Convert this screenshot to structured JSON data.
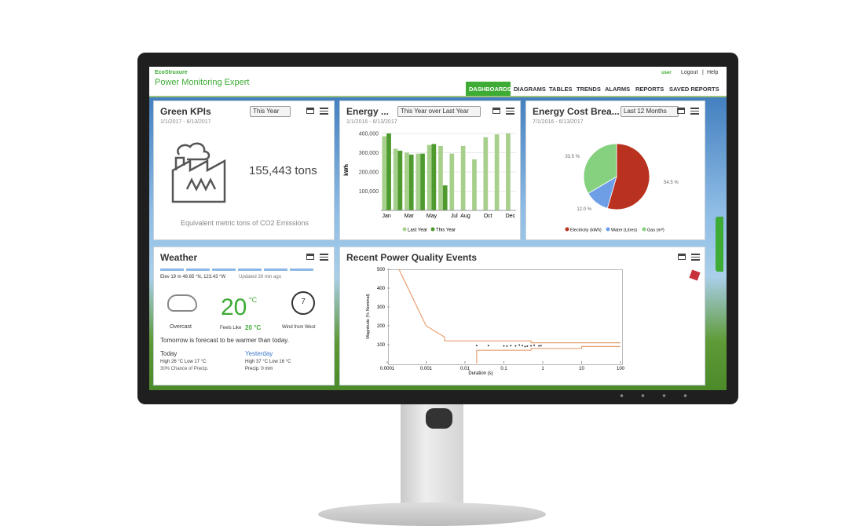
{
  "header": {
    "logo": "EcoStruxure",
    "app": "Power Monitoring Expert",
    "user": "user",
    "logout": "Logout",
    "help": "Help",
    "nav": [
      "DASHBOARDS",
      "DIAGRAMS",
      "TABLES",
      "TRENDS",
      "ALARMS",
      "REPORTS",
      "SAVED REPORTS"
    ]
  },
  "kpi": {
    "title": "Green KPIs",
    "period": "This Year",
    "dates": "1/1/2017 - 6/13/2017",
    "value": "155,443 tons",
    "caption": "Equivalent metric tons of CO2 Emissions"
  },
  "energy": {
    "title": "Energy ...",
    "period": "This Year over Last Year",
    "dates": "1/1/2016 - 6/13/2017"
  },
  "cost": {
    "title": "Energy Cost Brea...",
    "period": "Last 12 Months",
    "dates": "7/1/2016 - 6/13/2017"
  },
  "weather": {
    "title": "Weather",
    "location": "Elev 19 m 48.65 °N, 123.43 °W",
    "updated": "Updated 39 min ago",
    "condition": "Overcast",
    "temp": "20",
    "unit": "°C",
    "feels_label": "Feels Like",
    "feels": "20 °C",
    "wind": "7",
    "wind_label": "Wind from West",
    "forecast": "Tomorrow is forecast to be warmer than today.",
    "today": {
      "label": "Today",
      "temps": "High 26 °C  Low 17 °C",
      "precip": "30% Chance of Precip."
    },
    "yesterday": {
      "label": "Yesterday",
      "temps": "High 37 °C  Low 16 °C",
      "precip": "Precip. 0 mm"
    }
  },
  "pq": {
    "title": "Recent Power Quality Events"
  },
  "chart_data": [
    {
      "type": "bar",
      "categories": [
        "Jan",
        null,
        "Mar",
        null,
        "May",
        null,
        "Jul",
        "Aug",
        null,
        "Oct",
        null,
        "Dec"
      ],
      "series": [
        {
          "name": "Last Year",
          "color": "#a8d08d",
          "values": [
            385000,
            320000,
            300000,
            295000,
            340000,
            335000,
            295000,
            335000,
            265000,
            380000,
            395000,
            400000
          ]
        },
        {
          "name": "This Year",
          "color": "#4e9a2f",
          "values": [
            400000,
            310000,
            290000,
            295000,
            345000,
            130000,
            null,
            null,
            null,
            null,
            null,
            null
          ]
        }
      ],
      "y_label": "kWh",
      "ylim": [
        0,
        420000
      ],
      "yticks": [
        {
          "value": 100000,
          "label": "100,000"
        },
        {
          "value": 200000,
          "label": "200,000"
        },
        {
          "value": 300000,
          "label": "300,000"
        },
        {
          "value": 400000,
          "label": "400,000"
        }
      ],
      "grid": true,
      "legend": "bottom"
    },
    {
      "type": "pie",
      "labels": [
        "Electricity (kWh)",
        "Water (Litres)",
        "Gas (m³)"
      ],
      "values": [
        54.5,
        12.0,
        33.5
      ],
      "value_labels": [
        "54.5 %",
        "12.0 %",
        "33.5 %"
      ],
      "colors": [
        "#b8321f",
        "#6d9ee6",
        "#86d17f"
      ],
      "legend": "bottom"
    },
    {
      "type": "scatter",
      "x_label": "Duration (s)",
      "y_label": "Magnitude (% Nominal)",
      "xscale": "log",
      "xlim": [
        0.0001,
        100
      ],
      "xticks": [
        0.0001,
        0.001,
        0.01,
        0.1,
        1,
        10,
        100
      ],
      "ylim": [
        0,
        500
      ],
      "yticks": [
        100,
        200,
        300,
        400,
        500
      ],
      "series": [
        {
          "type": "line",
          "color": "#e8a070",
          "x": [
            0.0002,
            0.001,
            0.003,
            0.003,
            0.5,
            0.5,
            100
          ],
          "values": [
            500,
            200,
            140,
            120,
            120,
            110,
            110
          ]
        },
        {
          "type": "line",
          "color": "#e8a070",
          "x": [
            0.02,
            0.02,
            0.5,
            0.5,
            10,
            10,
            100
          ],
          "values": [
            0,
            70,
            70,
            80,
            80,
            90,
            90
          ]
        },
        {
          "type": "scatter",
          "color": "#333333",
          "x": [
            0.02,
            0.04,
            0.1,
            0.12,
            0.15,
            0.2,
            0.25,
            0.3,
            0.35,
            0.4,
            0.5,
            0.6,
            0.8,
            0.9
          ],
          "values": [
            95,
            95,
            93,
            92,
            95,
            93,
            98,
            95,
            90,
            92,
            94,
            97,
            93,
            95
          ]
        }
      ]
    }
  ]
}
